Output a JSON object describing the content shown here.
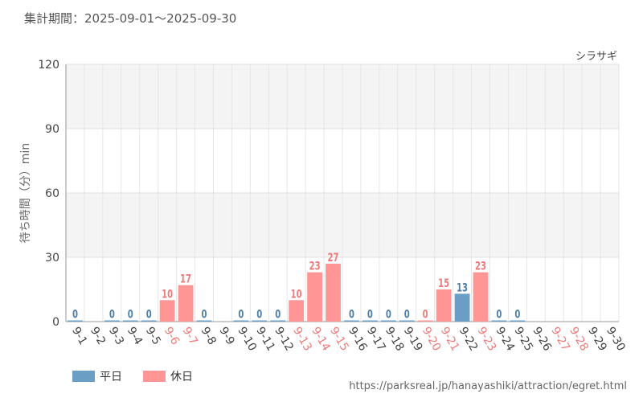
{
  "header": {
    "period_label": "集計期間：2025-09-01～2025-09-30"
  },
  "legend": [
    {
      "label": "平日",
      "color": "#6a9ec5"
    },
    {
      "label": "休日",
      "color": "#ff9595"
    }
  ],
  "footer": {
    "source": "https://parksreal.jp/hanayashiki/attraction/egret.html"
  },
  "chart_data": {
    "type": "bar",
    "series_name": "シラサギ",
    "ylabel": "待ち時間（分）min",
    "ylim": [
      0,
      120
    ],
    "yticks": [
      "0",
      "30",
      "60",
      "90",
      "120"
    ],
    "grid": true,
    "legend_position": "bottom-left",
    "categories": [
      "9-1",
      "9-2",
      "9-3",
      "9-4",
      "9-5",
      "9-6",
      "9-7",
      "9-8",
      "9-9",
      "9-10",
      "9-11",
      "9-12",
      "9-13",
      "9-14",
      "9-15",
      "9-16",
      "9-17",
      "9-18",
      "9-19",
      "9-20",
      "9-21",
      "9-22",
      "9-23",
      "9-24",
      "9-25",
      "9-26",
      "9-27",
      "9-28",
      "9-29",
      "9-30"
    ],
    "values": [
      0,
      null,
      0,
      0,
      0,
      10,
      17,
      0,
      null,
      0,
      0,
      0,
      10,
      23,
      27,
      0,
      0,
      0,
      0,
      0,
      15,
      13,
      23,
      0,
      0,
      null,
      null,
      null,
      null,
      null
    ],
    "value_labels": [
      "0",
      "",
      "0",
      "0",
      "0",
      "10",
      "17",
      "0",
      "",
      "0",
      "0",
      "0",
      "10",
      "23",
      "27",
      "0",
      "0",
      "0",
      "0",
      "0",
      "15",
      "13",
      "23",
      "0",
      "0",
      "",
      "",
      "",
      "",
      ""
    ],
    "day_type": [
      "weekday",
      "weekday",
      "weekday",
      "weekday",
      "weekday",
      "holiday",
      "holiday",
      "weekday",
      "weekday",
      "weekday",
      "weekday",
      "weekday",
      "holiday",
      "holiday",
      "holiday",
      "weekday",
      "weekday",
      "weekday",
      "weekday",
      "holiday",
      "holiday",
      "weekday",
      "holiday",
      "weekday",
      "weekday",
      "weekday",
      "holiday",
      "holiday",
      "weekday",
      "weekday"
    ],
    "colors": {
      "weekday": "#6a9ec5",
      "holiday": "#ff9595",
      "weekday_label": "#4f7fa8",
      "holiday_label": "#f07a7a",
      "weekday_tick": "#444444",
      "holiday_tick": "#f07a7a"
    }
  }
}
